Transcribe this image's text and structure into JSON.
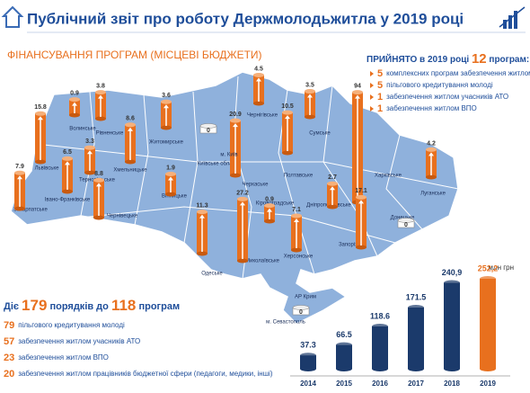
{
  "header": {
    "title": "Публічний звіт про роботу Держмолодьжитла  у 2019 році"
  },
  "subtitle": "ФІНАНСУВАННЯ ПРОГРАМ (МІСЦЕВІ БЮДЖЕТИ)",
  "adopted": {
    "lead": "ПРИЙНЯТО в 2019 році",
    "count": 12,
    "tail": "програм:",
    "items": [
      {
        "count": 5,
        "text": "комплексних програм забезпечення житлом"
      },
      {
        "count": 5,
        "text": "пільгового кредитування молоді"
      },
      {
        "count": 1,
        "text": "забезпечення  житлом учасників АТО"
      },
      {
        "count": 1,
        "text": "забезпечення житлом ВПО"
      }
    ]
  },
  "active": {
    "lead": "Діє",
    "orders": 179,
    "mid": "порядків до",
    "programs": 118,
    "tail": "програм",
    "items": [
      {
        "count": 79,
        "text": "пільгового кредитування молоді"
      },
      {
        "count": 57,
        "text": "забезпечення житлом учасників АТО"
      },
      {
        "count": 23,
        "text": "забезпечення житлом ВПО"
      },
      {
        "count": 20,
        "text": "забезпечення житлом працівників бюджетної сфери (педагоги, медики, інші)"
      }
    ]
  },
  "map": {
    "regions": [
      {
        "name": "Волинське",
        "value": 0.9
      },
      {
        "name": "Рівненське",
        "value": 3.8
      },
      {
        "name": "Житомирське",
        "value": 3.6
      },
      {
        "name": "Київське обласне",
        "value": 0
      },
      {
        "name": "Чернігівське",
        "value": 4.5
      },
      {
        "name": "Сумське",
        "value": 3.5
      },
      {
        "name": "Черкаське",
        "value": 20.9
      },
      {
        "name": "Полтавське",
        "value": 10.5
      },
      {
        "name": "Харківське",
        "value": 94
      },
      {
        "name": "Луганське",
        "value": 4.2
      },
      {
        "name": "Донецьке",
        "value": 0
      },
      {
        "name": "Львівське",
        "value": 15.8
      },
      {
        "name": "Тернопільське",
        "value": 3.3
      },
      {
        "name": "Хмельницьке",
        "value": 8.6
      },
      {
        "name": "Івано-Франківське",
        "value": 6.5
      },
      {
        "name": "Закарпатське",
        "value": 7.9
      },
      {
        "name": "Чернівецьке",
        "value": 8.8
      },
      {
        "name": "Вінницьке",
        "value": 1.9
      },
      {
        "name": "Миколаївське",
        "value": 27.2
      },
      {
        "name": "Кіровоградське",
        "value": 0.9
      },
      {
        "name": "Дніпропетровське",
        "value": 2.7
      },
      {
        "name": "Запорізьке",
        "value": 17.1
      },
      {
        "name": "Херсонське",
        "value": 7.1
      },
      {
        "name": "Одеське",
        "value": 11.3
      },
      {
        "name": "АР Крим",
        "value": 0
      }
    ],
    "labels": [
      "м. Київ",
      "м. Севастополь"
    ]
  },
  "chart_data": {
    "type": "bar",
    "unit": "млн грн",
    "categories": [
      "2014",
      "2015",
      "2016",
      "2017",
      "2018",
      "2019"
    ],
    "values": [
      37.3,
      66.5,
      118.6,
      171.5,
      240.9,
      252.2
    ],
    "value_labels": [
      "37.3",
      "66.5",
      "118.6",
      "171.5",
      "240,9",
      "252,2"
    ],
    "colors": [
      "#1b3a6b",
      "#1b3a6b",
      "#1b3a6b",
      "#1b3a6b",
      "#1b3a6b",
      "#e8701e"
    ]
  }
}
